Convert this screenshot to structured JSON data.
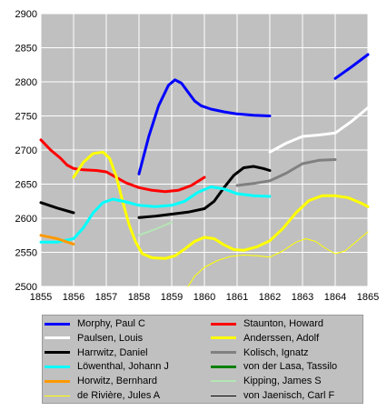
{
  "chart_data": {
    "type": "line",
    "title": "",
    "xlabel": "",
    "ylabel": "",
    "xlim": [
      1855,
      1865
    ],
    "ylim": [
      2500,
      2900
    ],
    "x_ticks": [
      "1855",
      "1856",
      "1857",
      "1858",
      "1859",
      "1860",
      "1861",
      "1862",
      "1863",
      "1864",
      "1865"
    ],
    "y_ticks": [
      "2500",
      "2550",
      "2600",
      "2650",
      "2700",
      "2750",
      "2800",
      "2850",
      "2900"
    ],
    "grid": true,
    "legend_position": "bottom",
    "plot_background": "#c0c0c0",
    "series": [
      {
        "name": "Morphy, Paul C",
        "color": "#0000ff",
        "width": 3,
        "segments": [
          [
            [
              1858.0,
              2665
            ],
            [
              1858.3,
              2720
            ],
            [
              1858.6,
              2765
            ],
            [
              1858.9,
              2795
            ],
            [
              1859.1,
              2803
            ],
            [
              1859.3,
              2798
            ],
            [
              1859.5,
              2785
            ],
            [
              1859.7,
              2772
            ],
            [
              1859.9,
              2765
            ],
            [
              1860.2,
              2760
            ],
            [
              1860.6,
              2756
            ],
            [
              1861.0,
              2753
            ],
            [
              1861.5,
              2751
            ],
            [
              1862.0,
              2750
            ]
          ],
          [
            [
              1864.0,
              2805
            ],
            [
              1864.5,
              2822
            ],
            [
              1865.0,
              2840
            ]
          ]
        ]
      },
      {
        "name": "Staunton, Howard",
        "color": "#ff0000",
        "width": 3,
        "segments": [
          [
            [
              1855.0,
              2715
            ],
            [
              1855.3,
              2700
            ],
            [
              1855.6,
              2688
            ],
            [
              1855.8,
              2678
            ],
            [
              1856.0,
              2673
            ],
            [
              1856.3,
              2671
            ],
            [
              1856.7,
              2670
            ],
            [
              1857.0,
              2668
            ],
            [
              1857.3,
              2660
            ],
            [
              1857.6,
              2652
            ],
            [
              1858.0,
              2645
            ],
            [
              1858.4,
              2641
            ],
            [
              1858.8,
              2639
            ],
            [
              1859.2,
              2641
            ],
            [
              1859.6,
              2648
            ],
            [
              1860.0,
              2660
            ]
          ]
        ]
      },
      {
        "name": "Paulsen, Louis",
        "color": "#ffffff",
        "width": 3,
        "segments": [
          [
            [
              1862.0,
              2697
            ],
            [
              1862.5,
              2710
            ],
            [
              1863.0,
              2720
            ],
            [
              1863.5,
              2722
            ],
            [
              1864.0,
              2725
            ],
            [
              1864.5,
              2742
            ],
            [
              1865.0,
              2762
            ]
          ]
        ]
      },
      {
        "name": "Anderssen, Adolf",
        "color": "#ffff00",
        "width": 3,
        "segments": [
          [
            [
              1856.0,
              2660
            ],
            [
              1856.3,
              2682
            ],
            [
              1856.6,
              2695
            ],
            [
              1856.9,
              2697
            ],
            [
              1857.1,
              2688
            ],
            [
              1857.3,
              2662
            ],
            [
              1857.5,
              2625
            ],
            [
              1857.7,
              2590
            ],
            [
              1857.9,
              2565
            ],
            [
              1858.1,
              2548
            ],
            [
              1858.4,
              2542
            ],
            [
              1858.8,
              2541
            ],
            [
              1859.1,
              2545
            ],
            [
              1859.4,
              2555
            ],
            [
              1859.7,
              2566
            ],
            [
              1860.0,
              2572
            ],
            [
              1860.3,
              2570
            ],
            [
              1860.6,
              2561
            ],
            [
              1860.9,
              2554
            ],
            [
              1861.2,
              2553
            ],
            [
              1861.6,
              2558
            ],
            [
              1862.0,
              2567
            ],
            [
              1862.4,
              2585
            ],
            [
              1862.8,
              2608
            ],
            [
              1863.2,
              2626
            ],
            [
              1863.6,
              2633
            ],
            [
              1864.0,
              2633
            ],
            [
              1864.4,
              2630
            ],
            [
              1864.8,
              2622
            ],
            [
              1865.0,
              2617
            ]
          ]
        ]
      },
      {
        "name": "Harrwitz, Daniel",
        "color": "#000000",
        "width": 3,
        "segments": [
          [
            [
              1855.0,
              2623
            ],
            [
              1855.5,
              2615
            ],
            [
              1856.0,
              2608
            ]
          ],
          [
            [
              1858.0,
              2601
            ],
            [
              1858.5,
              2603
            ],
            [
              1859.0,
              2606
            ],
            [
              1859.5,
              2609
            ],
            [
              1860.0,
              2614
            ],
            [
              1860.3,
              2625
            ],
            [
              1860.6,
              2645
            ],
            [
              1860.9,
              2663
            ],
            [
              1861.2,
              2674
            ],
            [
              1861.5,
              2676
            ],
            [
              1861.8,
              2673
            ],
            [
              1862.0,
              2670
            ]
          ]
        ]
      },
      {
        "name": "Kolisch, Ignatz",
        "color": "#808080",
        "width": 3,
        "segments": [
          [
            [
              1861.0,
              2648
            ],
            [
              1861.5,
              2651
            ],
            [
              1862.0,
              2655
            ],
            [
              1862.5,
              2666
            ],
            [
              1863.0,
              2680
            ],
            [
              1863.5,
              2685
            ],
            [
              1864.0,
              2686
            ]
          ]
        ]
      },
      {
        "name": "Löwenthal, Johann J",
        "color": "#00ffff",
        "width": 3,
        "segments": [
          [
            [
              1855.0,
              2565
            ],
            [
              1855.5,
              2565
            ],
            [
              1856.0,
              2570
            ],
            [
              1856.3,
              2586
            ],
            [
              1856.6,
              2608
            ],
            [
              1856.9,
              2623
            ],
            [
              1857.2,
              2628
            ],
            [
              1857.6,
              2624
            ],
            [
              1858.0,
              2619
            ],
            [
              1858.5,
              2617
            ],
            [
              1859.0,
              2619
            ],
            [
              1859.4,
              2625
            ],
            [
              1859.8,
              2638
            ],
            [
              1860.2,
              2646
            ],
            [
              1860.6,
              2643
            ],
            [
              1861.0,
              2636
            ],
            [
              1861.5,
              2633
            ],
            [
              1862.0,
              2632
            ]
          ]
        ]
      },
      {
        "name": "von der Lasa, Tassilo",
        "color": "#008000",
        "width": 3,
        "segments": []
      },
      {
        "name": "Horwitz, Bernhard",
        "color": "#ff9900",
        "width": 3,
        "segments": [
          [
            [
              1855.0,
              2575
            ],
            [
              1855.5,
              2570
            ],
            [
              1856.0,
              2562
            ]
          ]
        ]
      },
      {
        "name": "Kipping, James S",
        "color": "#b3e6b3",
        "width": 2,
        "segments": [
          [
            [
              1858.0,
              2575
            ],
            [
              1858.5,
              2584
            ],
            [
              1859.0,
              2594
            ]
          ]
        ]
      },
      {
        "name": "de Rivière, Jules A",
        "color": "#ffff00",
        "width": 1,
        "segments": [
          [
            [
              1859.5,
              2500
            ],
            [
              1859.7,
              2515
            ],
            [
              1860.0,
              2528
            ],
            [
              1860.4,
              2538
            ],
            [
              1860.8,
              2544
            ],
            [
              1861.2,
              2546
            ],
            [
              1861.6,
              2545
            ],
            [
              1862.0,
              2543
            ],
            [
              1862.4,
              2552
            ],
            [
              1862.8,
              2565
            ],
            [
              1863.1,
              2570
            ],
            [
              1863.4,
              2566
            ],
            [
              1863.7,
              2556
            ],
            [
              1864.0,
              2548
            ],
            [
              1864.3,
              2552
            ],
            [
              1864.7,
              2568
            ],
            [
              1865.0,
              2580
            ]
          ]
        ]
      },
      {
        "name": "von Jaenisch, Carl F",
        "color": "#000000",
        "width": 1,
        "segments": []
      }
    ]
  }
}
